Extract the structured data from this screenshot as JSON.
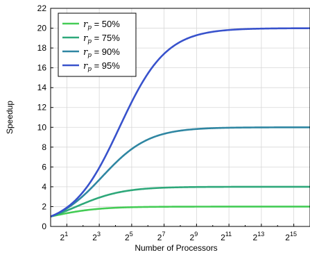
{
  "chart_data": {
    "type": "line",
    "xlabel": "Number of Processors",
    "ylabel": "Speedup",
    "x_scale": "log2",
    "xlim": [
      1,
      65536
    ],
    "ylim": [
      0,
      22
    ],
    "x_ticks": [
      2,
      8,
      32,
      128,
      512,
      2048,
      8192,
      32768
    ],
    "x_tick_labels": [
      {
        "base": "2",
        "exp": "1"
      },
      {
        "base": "2",
        "exp": "3"
      },
      {
        "base": "2",
        "exp": "5"
      },
      {
        "base": "2",
        "exp": "7"
      },
      {
        "base": "2",
        "exp": "9"
      },
      {
        "base": "2",
        "exp": "11"
      },
      {
        "base": "2",
        "exp": "13"
      },
      {
        "base": "2",
        "exp": "15"
      }
    ],
    "y_ticks": [
      0,
      2,
      4,
      6,
      8,
      10,
      12,
      14,
      16,
      18,
      20,
      22
    ],
    "y_tick_labels": [
      "0",
      "2",
      "4",
      "6",
      "8",
      "10",
      "12",
      "14",
      "16",
      "18",
      "20",
      "22"
    ],
    "grid": true,
    "legend_position": "top-left",
    "series": [
      {
        "name": "r_p = 50%",
        "label_var": "r",
        "label_sub": "p",
        "label_rest": " = 50%",
        "p": 0.5,
        "color": "#44cc55"
      },
      {
        "name": "r_p = 75%",
        "label_var": "r",
        "label_sub": "p",
        "label_rest": " = 75%",
        "p": 0.75,
        "color": "#2ea87a"
      },
      {
        "name": "r_p = 90%",
        "label_var": "r",
        "label_sub": "p",
        "label_rest": " = 90%",
        "p": 0.9,
        "color": "#2f86a2"
      },
      {
        "name": "r_p = 95%",
        "label_var": "r",
        "label_sub": "p",
        "label_rest": " = 95%",
        "p": 0.95,
        "color": "#3852cc"
      }
    ]
  }
}
